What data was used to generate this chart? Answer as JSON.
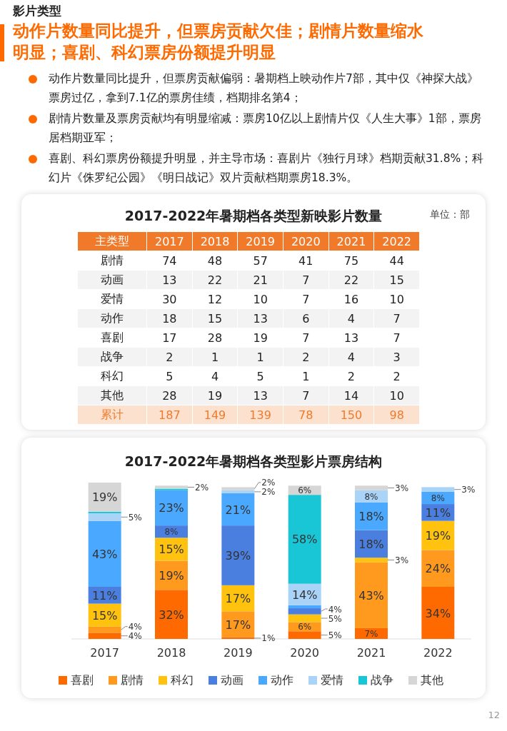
{
  "chart_data": [
    {
      "type": "other",
      "subtitle": "影片类型",
      "title": "动作片数量同比提升，但票房贡献欠佳；剧情片数量缩水明显；喜剧、科幻票房份额提升明显",
      "annotations": [
        "动作片数量同比提升，但票房贡献偏弱：暑期档上映动作片7部，其中仅《神探大战》票房过亿，拿到7.1亿的票房佳绩，档期排名第4；",
        "剧情片数量及票房贡献均有明显缩减：票房10亿以上剧情片仅《人生大事》1部，票房居档期亚军；",
        "喜剧、科幻票房份额提升明显，并主导市场：喜剧片《独行月球》档期贡献31.8%；科幻片《侏罗纪公园》《明日战记》双片贡献档期票房18.3%。",
        "12"
      ]
    },
    {
      "type": "heatmap",
      "title": "2017-2022年暑期档各类型新映影片数量",
      "annotations": [
        "单位：部"
      ],
      "ylabel": "主类型",
      "categories": [
        "2017",
        "2018",
        "2019",
        "2020",
        "2021",
        "2022"
      ],
      "y_categories": [
        "剧情",
        "动画",
        "爱情",
        "动作",
        "喜剧",
        "战争",
        "科幻",
        "其他",
        "累计"
      ],
      "cells": [
        [
          74,
          48,
          57,
          41,
          75,
          44
        ],
        [
          13,
          22,
          21,
          7,
          22,
          15
        ],
        [
          30,
          12,
          10,
          7,
          16,
          10
        ],
        [
          18,
          15,
          13,
          6,
          4,
          7
        ],
        [
          17,
          28,
          19,
          7,
          13,
          7
        ],
        [
          2,
          1,
          1,
          2,
          4,
          3
        ],
        [
          5,
          4,
          5,
          1,
          2,
          2
        ],
        [
          28,
          19,
          13,
          7,
          14,
          10
        ],
        [
          187,
          149,
          139,
          78,
          150,
          98
        ]
      ],
      "data_labels": true
    },
    {
      "type": "bar",
      "stacked": true,
      "title": "2017-2022年暑期档各类型影片票房结构",
      "legend": "bottom",
      "categories": [
        "2017",
        "2018",
        "2019",
        "2020",
        "2021",
        "2022"
      ],
      "series": [
        {
          "name": "喜剧",
          "color": "#ff6a00",
          "values": [
            4,
            32,
            1,
            5,
            7,
            34
          ],
          "value_labels": [
            "4%",
            "32%",
            "1%",
            "5%",
            "7%",
            "34%"
          ]
        },
        {
          "name": "剧情",
          "color": "#ff9a1f",
          "values": [
            4,
            19,
            17,
            6,
            43,
            24
          ],
          "value_labels": [
            "4%",
            "19%",
            "17%",
            "6%",
            "43%",
            "24%"
          ]
        },
        {
          "name": "科幻",
          "color": "#ffc20e",
          "values": [
            15,
            15,
            17,
            5,
            3,
            19
          ],
          "value_labels": [
            "15%",
            "15%",
            "17%",
            "5%",
            "3%",
            "19%"
          ]
        },
        {
          "name": "动画",
          "color": "#4a7fe0",
          "values": [
            11,
            8,
            39,
            4,
            18,
            11
          ],
          "value_labels": [
            "11%",
            "8%",
            "39%",
            "4%",
            "18%",
            "11%"
          ]
        },
        {
          "name": "动作",
          "color": "#4aa8ff",
          "values": [
            43,
            23,
            21,
            2,
            18,
            8
          ],
          "value_labels": [
            "43%",
            "23%",
            "21%",
            null,
            "18%",
            "8%"
          ]
        },
        {
          "name": "爱情",
          "color": "#a9d3f7",
          "values": [
            5,
            null,
            2,
            14,
            8,
            3
          ],
          "value_labels": [
            "5%",
            null,
            "2%",
            "14%",
            "8%",
            "3%"
          ]
        },
        {
          "name": "战争",
          "color": "#19c6d6",
          "values": [
            1,
            1,
            null,
            58,
            null,
            null
          ],
          "value_labels": [
            null,
            null,
            null,
            "58%",
            null,
            null
          ]
        },
        {
          "name": "其他",
          "color": "#d6d6d6",
          "values": [
            19,
            2,
            2,
            6,
            3,
            null
          ],
          "value_labels": [
            "19%",
            "2%",
            "2%",
            "6%",
            "3%",
            null
          ]
        }
      ]
    }
  ]
}
